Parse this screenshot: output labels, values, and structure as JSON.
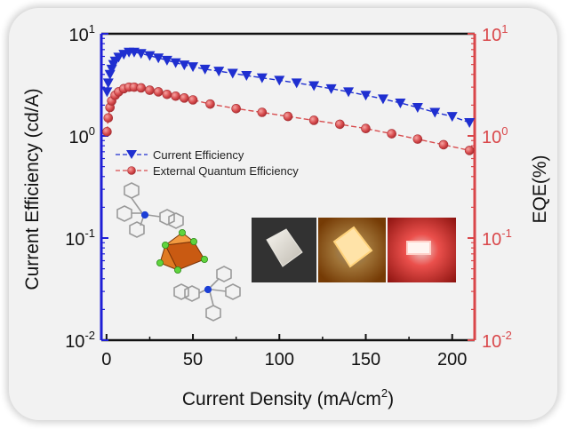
{
  "chart_data": {
    "type": "line",
    "x_label": "Current Density (mA/cm",
    "x_label_sup": "2",
    "x_label_end": ")",
    "x_lim": [
      -3,
      213
    ],
    "x_ticks": [
      "0",
      "50",
      "100",
      "150",
      "200"
    ],
    "y_left_label": "Current Efficiency (cd/A)",
    "y_right_label": "EQE(%)",
    "y_lim_log": [
      0.01,
      10
    ],
    "y_ticks_base": "10",
    "y_ticks_exp": [
      "1",
      "0",
      "-1",
      "-2"
    ],
    "y_right_ticks_exp": [
      "1",
      "0",
      "-1",
      "-2"
    ],
    "colors": {
      "left_axis": "#1f1fd6",
      "right_axis": "#d9474a",
      "ce_series": "#1f2fd0",
      "eqe_series": "#d84c4e"
    },
    "series": [
      {
        "name": "Current Efficiency",
        "axis": "left",
        "marker": "triangle-down",
        "x": [
          0.3,
          1,
          2,
          3,
          4,
          5,
          7,
          10,
          13,
          16,
          20,
          25,
          30,
          35,
          40,
          45,
          50,
          57,
          65,
          73,
          81,
          90,
          100,
          110,
          120,
          130,
          140,
          150,
          160,
          170,
          180,
          190,
          200,
          210
        ],
        "y": [
          2.7,
          3.3,
          4.0,
          4.5,
          5.0,
          5.4,
          5.9,
          6.3,
          6.6,
          6.6,
          6.4,
          6.1,
          5.8,
          5.5,
          5.2,
          4.95,
          4.75,
          4.5,
          4.3,
          4.1,
          3.9,
          3.7,
          3.5,
          3.3,
          3.1,
          2.9,
          2.7,
          2.5,
          2.3,
          2.1,
          1.9,
          1.7,
          1.55,
          1.35
        ]
      },
      {
        "name": "External Quantum Efficiency",
        "axis": "right",
        "marker": "circle",
        "x": [
          0.3,
          1,
          2,
          3,
          5,
          7,
          10,
          13,
          16,
          20,
          25,
          30,
          35,
          40,
          45,
          50,
          60,
          75,
          90,
          105,
          120,
          135,
          150,
          165,
          180,
          195,
          210
        ],
        "y": [
          1.1,
          1.5,
          1.9,
          2.2,
          2.5,
          2.7,
          2.9,
          3.0,
          3.0,
          2.95,
          2.8,
          2.7,
          2.55,
          2.45,
          2.35,
          2.25,
          2.05,
          1.85,
          1.7,
          1.55,
          1.42,
          1.3,
          1.18,
          1.05,
          0.93,
          0.82,
          0.72
        ]
      }
    ],
    "legend_position": "left-middle",
    "grid": false
  }
}
